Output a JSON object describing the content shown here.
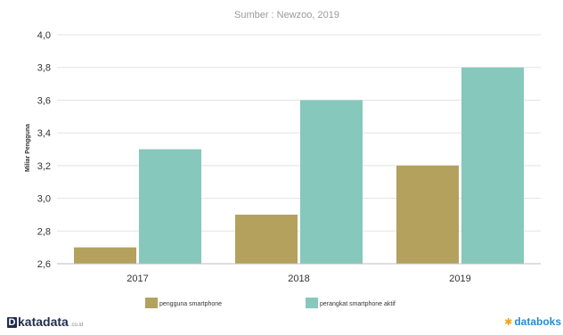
{
  "chart_data": {
    "type": "bar",
    "subtitle": "Sumber : Newzoo, 2019",
    "ylabel": "Miliar Pengguna",
    "xlabel": "",
    "categories": [
      "2017",
      "2018",
      "2019"
    ],
    "series": [
      {
        "name": "pengguna smartphone",
        "values": [
          2.7,
          2.9,
          3.2
        ],
        "color": "#b3a15d"
      },
      {
        "name": "perangkat smartphone aktif",
        "values": [
          3.3,
          3.6,
          3.8
        ],
        "color": "#86c8bb"
      }
    ],
    "ylim": [
      2.6,
      4.0
    ],
    "yticks": [
      "2,6",
      "2,8",
      "3,0",
      "3,2",
      "3,4",
      "3,6",
      "3,8",
      "4,0"
    ],
    "grid": true,
    "legend": "bottom"
  },
  "branding": {
    "left_logo": "katadata",
    "left_suffix": ".co.id",
    "right_logo": "databoks"
  }
}
